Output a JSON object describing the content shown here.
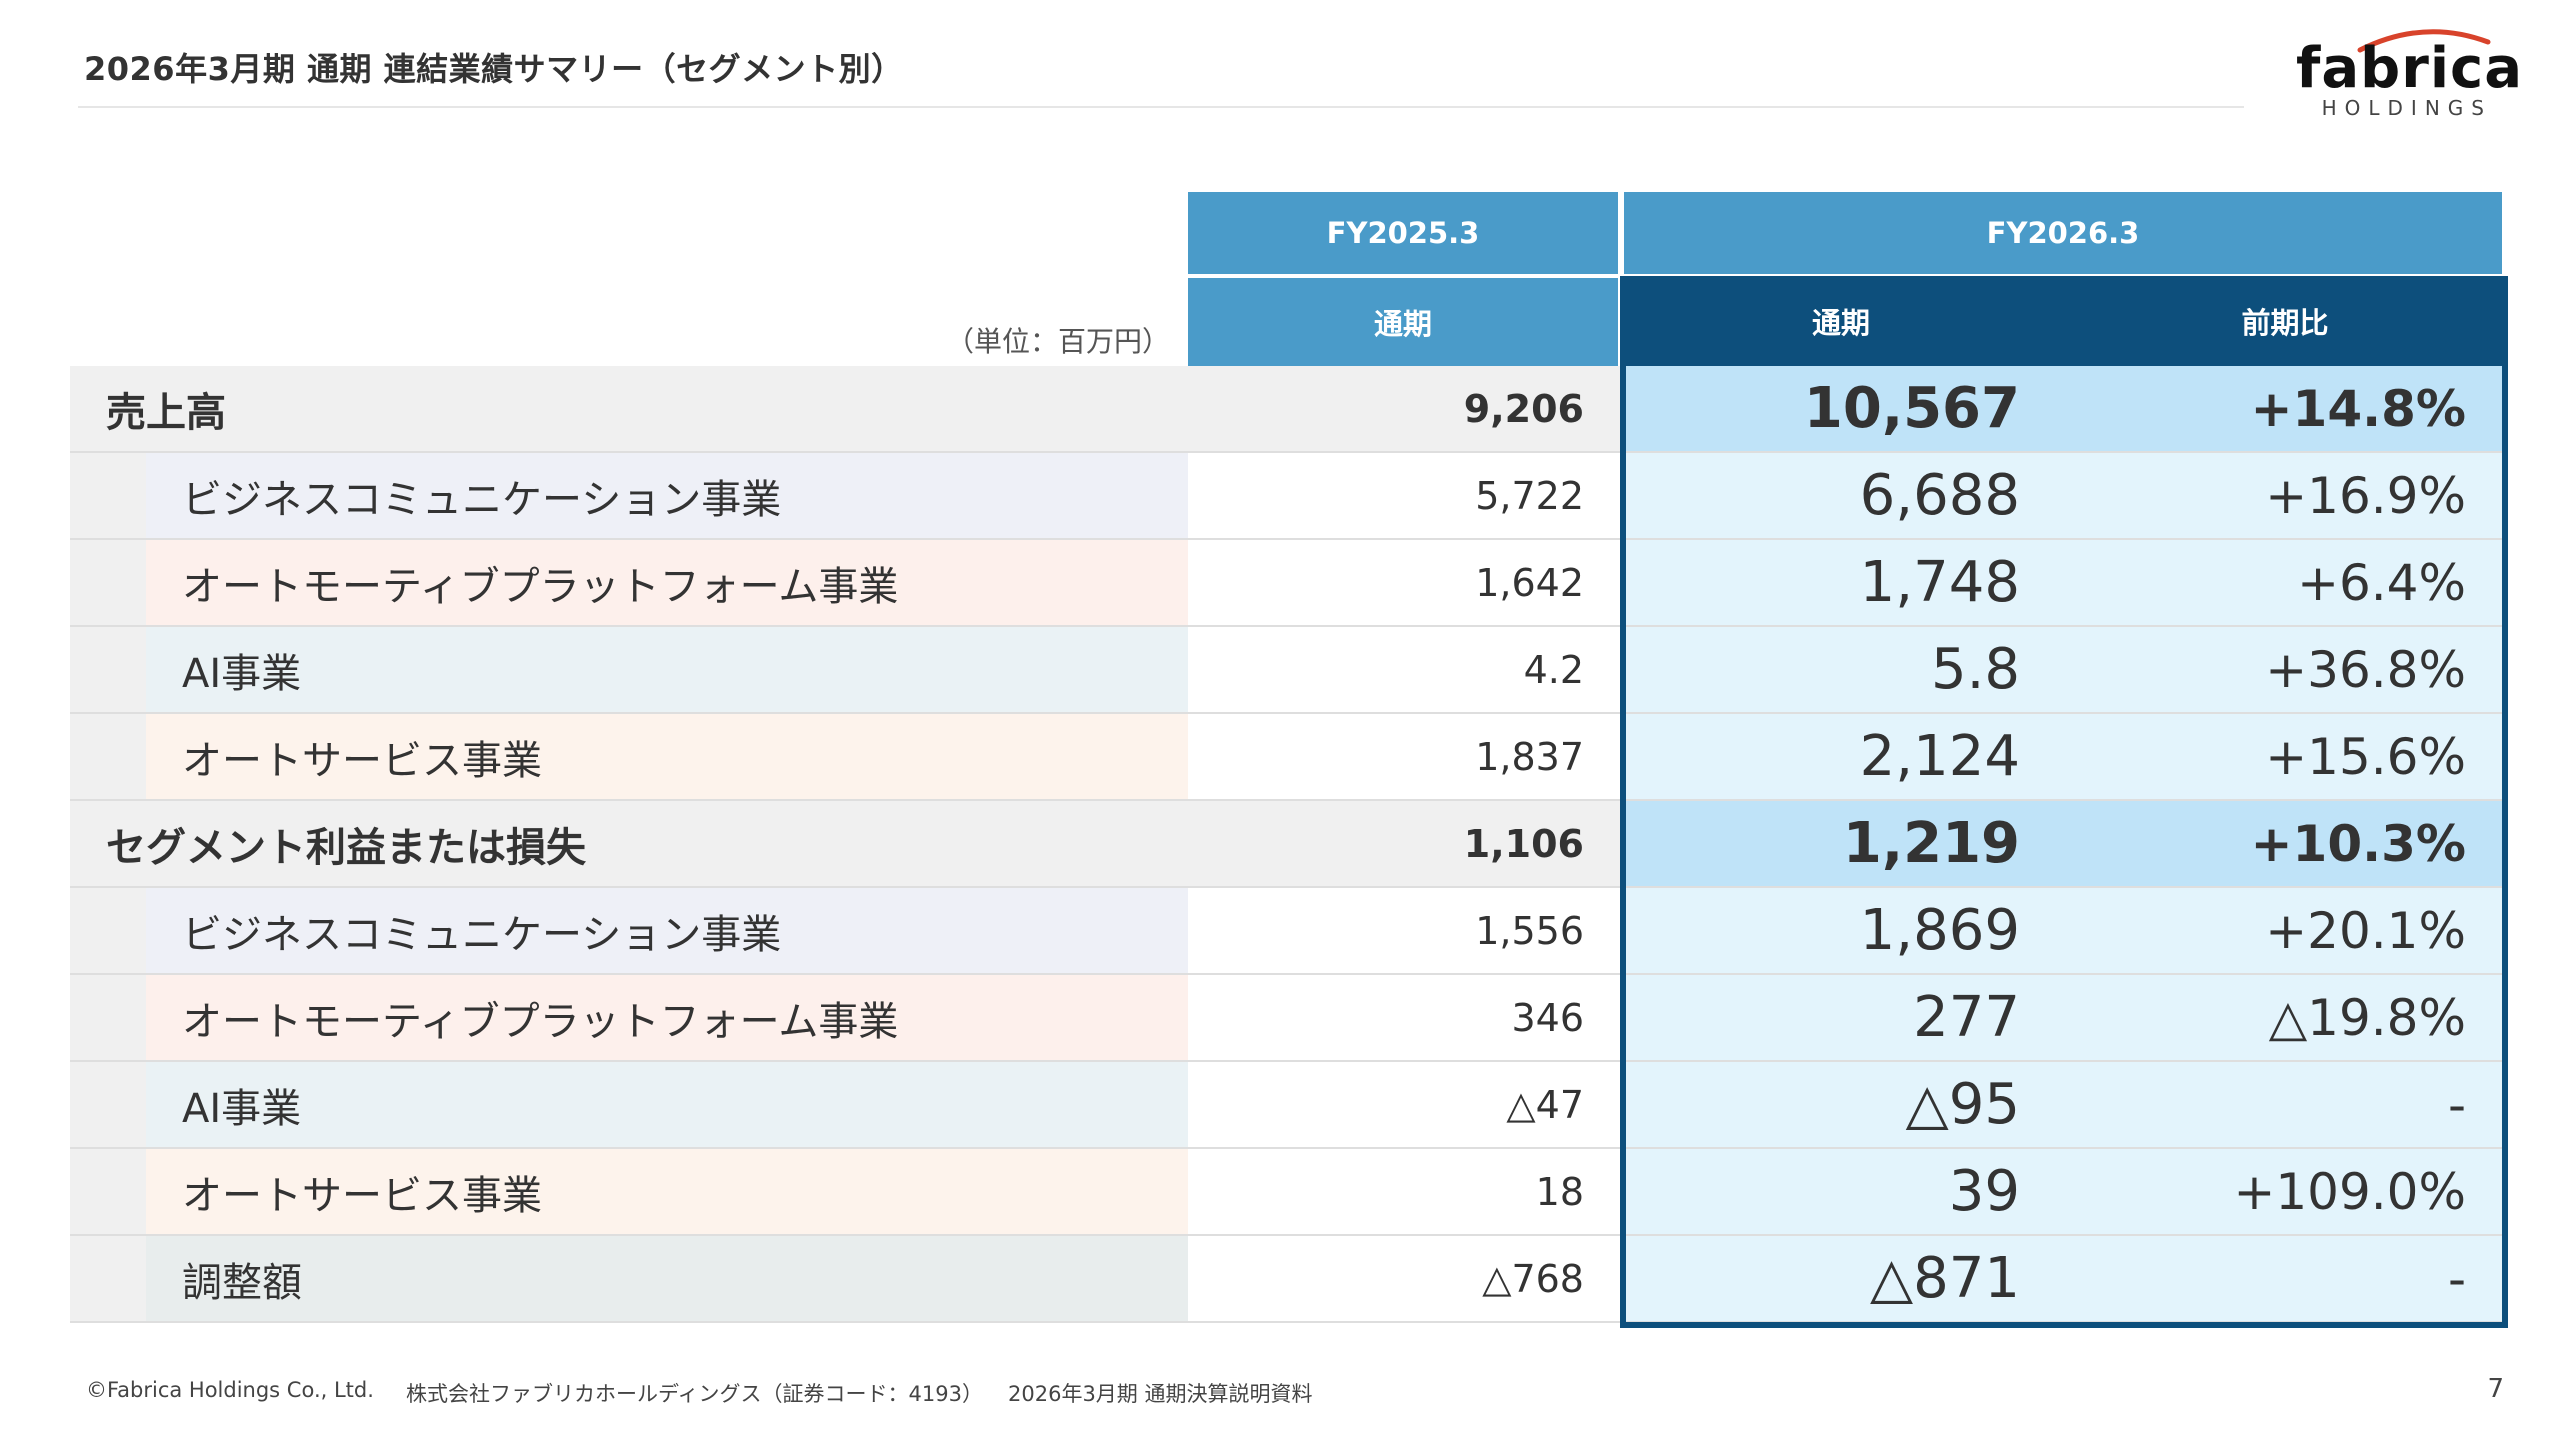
{
  "header": {
    "title": "2026年3月期 通期 連結業績サマリー（セグメント別）",
    "logo_word": "fabrica",
    "logo_sub": "HOLDINGS"
  },
  "table": {
    "unit": "（単位：百万円）",
    "fy_prev": "FY2025.3",
    "fy_cur": "FY2026.3",
    "col_prev": "通期",
    "col_cur": "通期",
    "col_yoy": "前期比",
    "rows": [
      {
        "label": "売上高",
        "prev": "9,206",
        "cur": "10,567",
        "yoy": "+14.8%"
      },
      {
        "label": "ビジネスコミュニケーション事業",
        "prev": "5,722",
        "cur": "6,688",
        "yoy": "+16.9%"
      },
      {
        "label": "オートモーティブプラットフォーム事業",
        "prev": "1,642",
        "cur": "1,748",
        "yoy": "+6.4%"
      },
      {
        "label": "AI事業",
        "prev": "4.2",
        "cur": "5.8",
        "yoy": "+36.8%"
      },
      {
        "label": "オートサービス事業",
        "prev": "1,837",
        "cur": "2,124",
        "yoy": "+15.6%"
      },
      {
        "label": "セグメント利益または損失",
        "prev": "1,106",
        "cur": "1,219",
        "yoy": "+10.3%"
      },
      {
        "label": "ビジネスコミュニケーション事業",
        "prev": "1,556",
        "cur": "1,869",
        "yoy": "+20.1%"
      },
      {
        "label": "オートモーティブプラットフォーム事業",
        "prev": "346",
        "cur": "277",
        "yoy": "△19.8%"
      },
      {
        "label": "AI事業",
        "prev": "△47",
        "cur": "△95",
        "yoy": "-"
      },
      {
        "label": "オートサービス事業",
        "prev": "18",
        "cur": "39",
        "yoy": "+109.0%"
      },
      {
        "label": "調整額",
        "prev": "△768",
        "cur": "△871",
        "yoy": "-"
      }
    ]
  },
  "footer": {
    "copyright": "©Fabrica Holdings Co., Ltd.",
    "company": "株式会社ファブリカホールディングス（証券コード：4193）",
    "doc": "2026年3月期 通期決算説明資料",
    "page": "7"
  },
  "colors": {
    "header_light": "#4a9bc9",
    "header_dark": "#0d4f7c",
    "highlight_main": "#bfe3f8",
    "highlight_sub": "#e3f4fc"
  }
}
